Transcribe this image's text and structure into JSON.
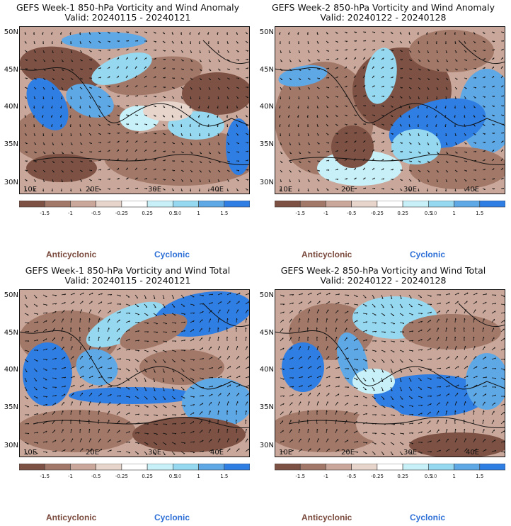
{
  "colors": {
    "anti_dark": "#7d5244",
    "anti_mid": "#a27868",
    "anti_light": "#c9a79a",
    "anti_pale": "#e7d5cc",
    "neutral": "#ffffff",
    "cyc_pale": "#c8f0f8",
    "cyc_light": "#96d8f0",
    "cyc_mid": "#5fa8e6",
    "cyc_dark": "#2f7ee3"
  },
  "lat_labels": [
    "50N",
    "45N",
    "40N",
    "35N",
    "30N"
  ],
  "lon_labels": [
    "10E",
    "20E",
    "30E",
    "40E"
  ],
  "colorbar": {
    "ticks": [
      "-1.5",
      "-1",
      "-0.5",
      "-0.25",
      "0.25",
      "0.5",
      "1",
      "1.5"
    ],
    "exponent": "10"
  },
  "legend": {
    "anticyclonic": "Anticyclonic",
    "cyclonic": "Cyclonic"
  },
  "panels": [
    {
      "title": "GEFS Week-1 850-hPa Vorticity and Wind Anomaly",
      "valid": "Valid: 20240115 - 20240121"
    },
    {
      "title": "GEFS Week-2 850-hPa Vorticity and Wind Anomaly",
      "valid": "Valid: 20240122 - 20240128"
    },
    {
      "title": "GEFS Week-1 850-hPa Vorticity and Wind Total",
      "valid": "Valid: 20240115 - 20240121"
    },
    {
      "title": "GEFS Week-2 850-hPa Vorticity and Wind Total",
      "valid": "Valid: 20240122 - 20240128"
    }
  ]
}
